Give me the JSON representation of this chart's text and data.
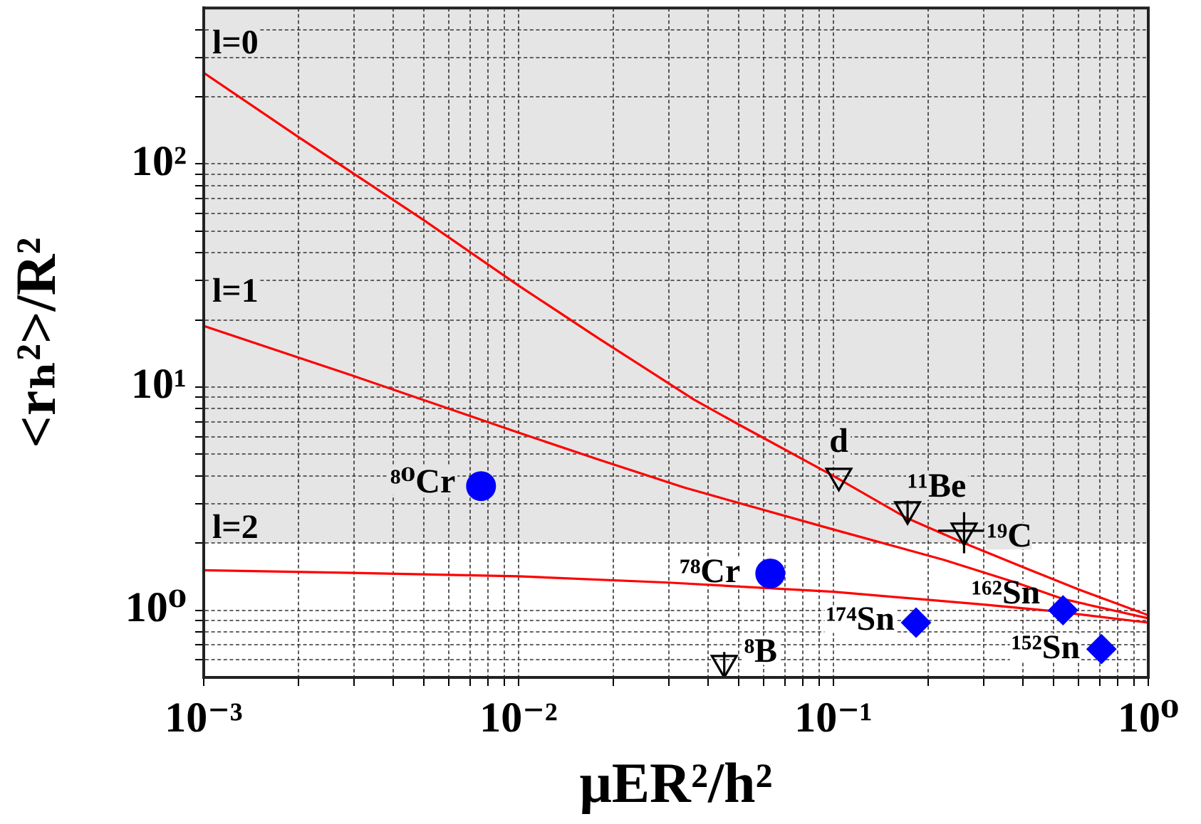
{
  "chart_data": {
    "type": "scatter",
    "xlabel": "μER²/h²",
    "ylabel": "<rₕ²>/R²",
    "log": "xy",
    "grid": true,
    "xlim": [
      0.001,
      1
    ],
    "ylim": [
      0.5,
      500
    ],
    "xticks": [
      {
        "value": 0.001,
        "label": "10⁻³"
      },
      {
        "value": 0.002,
        "label": null
      },
      {
        "value": 0.003,
        "label": null
      },
      {
        "value": 0.004,
        "label": null
      },
      {
        "value": 0.005,
        "label": null
      },
      {
        "value": 0.006,
        "label": null
      },
      {
        "value": 0.007,
        "label": null
      },
      {
        "value": 0.008,
        "label": null
      },
      {
        "value": 0.009,
        "label": null
      },
      {
        "value": 0.01,
        "label": "10⁻²"
      },
      {
        "value": 0.02,
        "label": null
      },
      {
        "value": 0.03,
        "label": null
      },
      {
        "value": 0.04,
        "label": null
      },
      {
        "value": 0.05,
        "label": null
      },
      {
        "value": 0.06,
        "label": null
      },
      {
        "value": 0.07,
        "label": null
      },
      {
        "value": 0.08,
        "label": null
      },
      {
        "value": 0.09,
        "label": null
      },
      {
        "value": 0.1,
        "label": "10⁻¹"
      },
      {
        "value": 0.2,
        "label": null
      },
      {
        "value": 0.3,
        "label": null
      },
      {
        "value": 0.4,
        "label": null
      },
      {
        "value": 0.5,
        "label": null
      },
      {
        "value": 0.6,
        "label": null
      },
      {
        "value": 0.7,
        "label": null
      },
      {
        "value": 0.8,
        "label": null
      },
      {
        "value": 0.9,
        "label": null
      },
      {
        "value": 1,
        "label": "10⁰"
      }
    ],
    "yticks": [
      {
        "value": 0.6,
        "label": null
      },
      {
        "value": 0.7,
        "label": null
      },
      {
        "value": 0.8,
        "label": null
      },
      {
        "value": 0.9,
        "label": null
      },
      {
        "value": 1,
        "label": "10⁰"
      },
      {
        "value": 2,
        "label": null
      },
      {
        "value": 3,
        "label": null
      },
      {
        "value": 4,
        "label": null
      },
      {
        "value": 5,
        "label": null
      },
      {
        "value": 6,
        "label": null
      },
      {
        "value": 7,
        "label": null
      },
      {
        "value": 8,
        "label": null
      },
      {
        "value": 9,
        "label": null
      },
      {
        "value": 10,
        "label": "10¹"
      },
      {
        "value": 20,
        "label": null
      },
      {
        "value": 30,
        "label": null
      },
      {
        "value": 40,
        "label": null
      },
      {
        "value": 50,
        "label": null
      },
      {
        "value": 60,
        "label": null
      },
      {
        "value": 70,
        "label": null
      },
      {
        "value": 80,
        "label": null
      },
      {
        "value": 90,
        "label": null
      },
      {
        "value": 100,
        "label": "10²"
      },
      {
        "value": 200,
        "label": null
      },
      {
        "value": 300,
        "label": null
      },
      {
        "value": 400,
        "label": null
      }
    ],
    "bands": [
      {
        "axis": "y",
        "from": 2,
        "to": 500,
        "color": "#e5e5e5"
      }
    ],
    "series": [
      {
        "name": "l=0",
        "type": "line",
        "color": "#ff0000",
        "line_style": "solid",
        "x": [
          0.001,
          0.002,
          0.005,
          0.01,
          0.018,
          0.036,
          0.05,
          0.1,
          0.17,
          0.26,
          0.4,
          0.6,
          1
        ],
        "values": [
          256,
          132,
          56,
          28.5,
          16.5,
          8.8,
          6.8,
          4.0,
          2.6,
          2.0,
          1.56,
          1.24,
          0.95
        ]
      },
      {
        "name": "l=1",
        "type": "line",
        "color": "#ff0000",
        "line_style": "solid",
        "x": [
          0.001,
          0.003,
          0.01,
          0.018,
          0.0335,
          0.1,
          0.225,
          0.38,
          0.54,
          1
        ],
        "values": [
          18.8,
          11.2,
          6.25,
          4.73,
          3.55,
          2.3,
          1.68,
          1.33,
          1.12,
          0.92
        ]
      },
      {
        "name": "l=2",
        "type": "line",
        "color": "#ff0000",
        "line_style": "solid",
        "x": [
          0.001,
          0.003,
          0.01,
          0.03,
          0.1,
          0.3,
          0.5,
          1
        ],
        "values": [
          1.51,
          1.47,
          1.42,
          1.33,
          1.21,
          1.06,
          0.99,
          0.88
        ]
      },
      {
        "type": "scatter",
        "marker": "triangle",
        "color": "#000000",
        "x": [
          0.104,
          0.172,
          0.26,
          0.045
        ],
        "values": [
          4.0,
          2.83,
          2.27,
          0.58
        ],
        "errors": [
          null,
          [
            2.5,
            3.1
          ],
          [
            1.8,
            2.75
          ],
          [
            0.5,
            0.65
          ]
        ],
        "xerrors": [
          null,
          null,
          [
            0.215,
            0.3
          ],
          null
        ]
      },
      {
        "type": "scatter",
        "marker": "circle",
        "color": "#0000ff",
        "x": [
          0.0076,
          0.063
        ],
        "values": [
          3.6,
          1.46
        ]
      },
      {
        "type": "scatter",
        "marker": "diamond",
        "color": "#0000ff",
        "x": [
          0.183,
          0.536,
          0.71
        ],
        "values": [
          0.88,
          1.0,
          0.67
        ]
      }
    ],
    "annotations": [
      {
        "text": "d",
        "x": 0.104,
        "y": 4.0
      },
      {
        "text": "¹¹Be",
        "x": 0.172,
        "y": 2.83
      },
      {
        "text": "¹⁹C",
        "x": 0.26,
        "y": 2.27
      },
      {
        "text": "⁸B",
        "x": 0.045,
        "y": 0.58
      },
      {
        "text": "⁸⁰Cr",
        "x": 0.0076,
        "y": 3.6
      },
      {
        "text": "⁷⁸Cr",
        "x": 0.063,
        "y": 1.46
      },
      {
        "text": "¹⁷⁴Sn",
        "x": 0.183,
        "y": 0.88
      },
      {
        "text": "¹⁶²Sn",
        "x": 0.536,
        "y": 1.0
      },
      {
        "text": "¹⁵²Sn",
        "x": 0.71,
        "y": 0.67
      }
    ]
  }
}
